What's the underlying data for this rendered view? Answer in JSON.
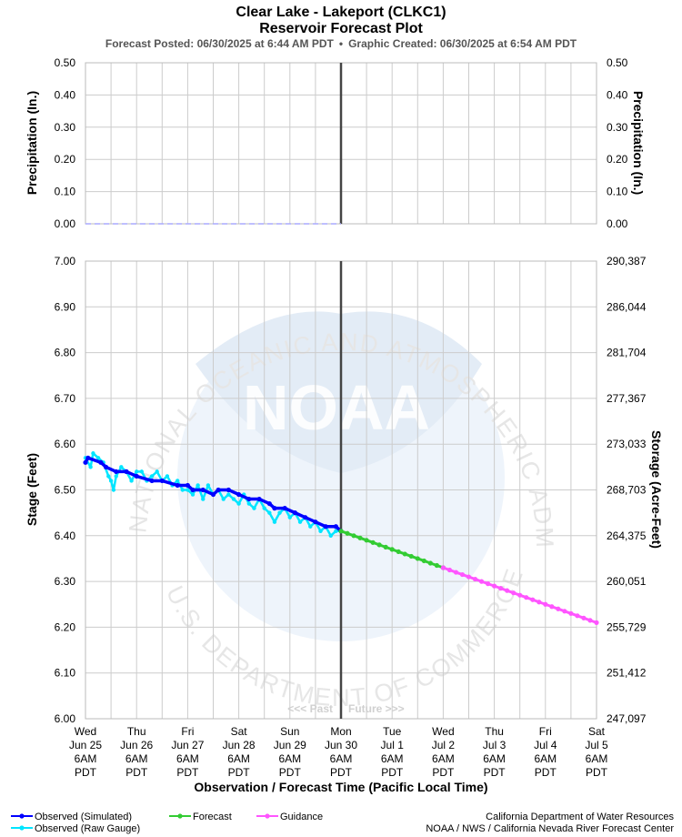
{
  "header": {
    "title": "Clear Lake - Lakeport (CLKC1)",
    "subtitle": "Reservoir Forecast Plot",
    "posted": "Forecast Posted: 06/30/2025 at 6:44 AM PDT",
    "separator": "•",
    "created": "Graphic Created: 06/30/2025 at 6:54 AM PDT"
  },
  "watermark": {
    "agency_text": "NATIONAL OCEANIC AND ATMOSPHERIC ADMINISTRATION",
    "dept_text": "U.S. DEPARTMENT OF COMMERCE",
    "logo_text": "NOAA"
  },
  "colors": {
    "observed_simulated": "#0000ff",
    "observed_raw": "#00e5ff",
    "forecast": "#33cc33",
    "guidance": "#ff55ff",
    "grid": "#cccccc",
    "now_line": "#444444",
    "precip": "#aaaaff"
  },
  "x_axis": {
    "title": "Observation / Forecast Time (Pacific Local Time)",
    "ticks": [
      {
        "l1": "Wed",
        "l2": "Jun 25",
        "l3": "6AM",
        "l4": "PDT"
      },
      {
        "l1": "Thu",
        "l2": "Jun 26",
        "l3": "6AM",
        "l4": "PDT"
      },
      {
        "l1": "Fri",
        "l2": "Jun 27",
        "l3": "6AM",
        "l4": "PDT"
      },
      {
        "l1": "Sat",
        "l2": "Jun 28",
        "l3": "6AM",
        "l4": "PDT"
      },
      {
        "l1": "Sun",
        "l2": "Jun 29",
        "l3": "6AM",
        "l4": "PDT"
      },
      {
        "l1": "Mon",
        "l2": "Jun 30",
        "l3": "6AM",
        "l4": "PDT"
      },
      {
        "l1": "Tue",
        "l2": "Jul 1",
        "l3": "6AM",
        "l4": "PDT"
      },
      {
        "l1": "Wed",
        "l2": "Jul 2",
        "l3": "6AM",
        "l4": "PDT"
      },
      {
        "l1": "Thu",
        "l2": "Jul 3",
        "l3": "6AM",
        "l4": "PDT"
      },
      {
        "l1": "Fri",
        "l2": "Jul 4",
        "l3": "6AM",
        "l4": "PDT"
      },
      {
        "l1": "Sat",
        "l2": "Jul 5",
        "l3": "6AM",
        "l4": "PDT"
      }
    ],
    "past_label": "<<< Past",
    "future_label": "Future >>>"
  },
  "chart_data": [
    {
      "type": "line",
      "name": "precipitation",
      "ylabel_left": "Precipitation (In.)",
      "ylabel_right": "Precipitation (In.)",
      "ylim": [
        0,
        0.5
      ],
      "yticks": [
        "0.00",
        "0.10",
        "0.20",
        "0.30",
        "0.40",
        "0.50"
      ],
      "xlim": [
        0,
        10
      ],
      "now": 5,
      "series": [
        {
          "values_x": [
            0,
            5
          ],
          "values": [
            0,
            0
          ]
        }
      ]
    },
    {
      "type": "line",
      "name": "stage",
      "ylabel_left": "Stage (Feet)",
      "ylabel_right": "Storage (Acre-Feet)",
      "ylim": [
        6.0,
        7.0
      ],
      "yticks": [
        "6.00",
        "6.10",
        "6.20",
        "6.30",
        "6.40",
        "6.50",
        "6.60",
        "6.70",
        "6.80",
        "6.90",
        "7.00"
      ],
      "yticks_right": [
        "247,097",
        "251,412",
        "255,729",
        "260,051",
        "264,375",
        "268,703",
        "273,033",
        "277,367",
        "281,704",
        "286,044",
        "290,387"
      ],
      "xlim": [
        0,
        10
      ],
      "now": 5,
      "series": [
        {
          "name": "Observed (Simulated)",
          "key": "observed_simulated",
          "x": [
            0.0,
            0.05,
            0.3,
            0.4,
            0.6,
            0.8,
            1.0,
            1.3,
            1.5,
            1.8,
            2.0,
            2.1,
            2.3,
            2.5,
            2.6,
            2.8,
            3.0,
            3.2,
            3.4,
            3.6,
            3.7,
            3.9,
            4.1,
            4.3,
            4.5,
            4.7,
            4.9,
            5.0
          ],
          "values": [
            6.56,
            6.57,
            6.56,
            6.55,
            6.54,
            6.54,
            6.53,
            6.52,
            6.52,
            6.51,
            6.51,
            6.5,
            6.5,
            6.49,
            6.5,
            6.5,
            6.49,
            6.48,
            6.48,
            6.47,
            6.46,
            6.46,
            6.45,
            6.44,
            6.43,
            6.42,
            6.42,
            6.41
          ]
        },
        {
          "name": "Observed (Raw Gauge)",
          "key": "observed_raw",
          "x": [
            0.0,
            0.1,
            0.15,
            0.25,
            0.35,
            0.45,
            0.5,
            0.55,
            0.6,
            0.7,
            0.8,
            0.9,
            1.0,
            1.1,
            1.2,
            1.3,
            1.4,
            1.5,
            1.6,
            1.7,
            1.8,
            1.9,
            2.0,
            2.1,
            2.2,
            2.3,
            2.4,
            2.5,
            2.6,
            2.7,
            2.8,
            2.9,
            3.0,
            3.1,
            3.2,
            3.3,
            3.4,
            3.5,
            3.6,
            3.7,
            3.8,
            3.9,
            4.0,
            4.1,
            4.2,
            4.3,
            4.4,
            4.5,
            4.6,
            4.7,
            4.8,
            4.9,
            5.0
          ],
          "values": [
            6.57,
            6.55,
            6.58,
            6.57,
            6.56,
            6.53,
            6.52,
            6.5,
            6.53,
            6.55,
            6.54,
            6.52,
            6.54,
            6.54,
            6.52,
            6.53,
            6.54,
            6.52,
            6.53,
            6.51,
            6.52,
            6.5,
            6.5,
            6.49,
            6.51,
            6.48,
            6.51,
            6.49,
            6.5,
            6.48,
            6.49,
            6.48,
            6.47,
            6.49,
            6.47,
            6.46,
            6.48,
            6.46,
            6.45,
            6.43,
            6.45,
            6.46,
            6.44,
            6.45,
            6.43,
            6.44,
            6.42,
            6.43,
            6.41,
            6.42,
            6.4,
            6.41,
            6.41
          ]
        },
        {
          "name": "Forecast",
          "key": "forecast",
          "x": [
            5.0,
            5.125,
            5.25,
            5.375,
            5.5,
            5.625,
            5.75,
            5.875,
            6.0,
            6.125,
            6.25,
            6.375,
            6.5,
            6.625,
            6.75,
            6.875,
            7.0
          ],
          "values": [
            6.41,
            6.405,
            6.4,
            6.395,
            6.39,
            6.385,
            6.38,
            6.375,
            6.37,
            6.365,
            6.36,
            6.355,
            6.35,
            6.345,
            6.34,
            6.335,
            6.33
          ]
        },
        {
          "name": "Guidance",
          "key": "guidance",
          "x": [
            7.0,
            7.125,
            7.25,
            7.375,
            7.5,
            7.625,
            7.75,
            7.875,
            8.0,
            8.125,
            8.25,
            8.375,
            8.5,
            8.625,
            8.75,
            8.875,
            9.0,
            9.125,
            9.25,
            9.375,
            9.5,
            9.625,
            9.75,
            9.875,
            10.0
          ],
          "values": [
            6.33,
            6.325,
            6.32,
            6.315,
            6.31,
            6.305,
            6.3,
            6.295,
            6.29,
            6.285,
            6.28,
            6.275,
            6.27,
            6.265,
            6.26,
            6.255,
            6.25,
            6.245,
            6.24,
            6.235,
            6.23,
            6.225,
            6.22,
            6.215,
            6.21
          ]
        }
      ]
    }
  ],
  "legend": {
    "items": [
      {
        "label": "Observed (Simulated)",
        "key": "observed_simulated"
      },
      {
        "label": "Observed (Raw Gauge)",
        "key": "observed_raw"
      },
      {
        "label": "Forecast",
        "key": "forecast"
      },
      {
        "label": "Guidance",
        "key": "guidance"
      }
    ]
  },
  "credits": {
    "line1": "California Department of Water Resources",
    "line2": "NOAA / NWS / California Nevada River Forecast Center"
  }
}
